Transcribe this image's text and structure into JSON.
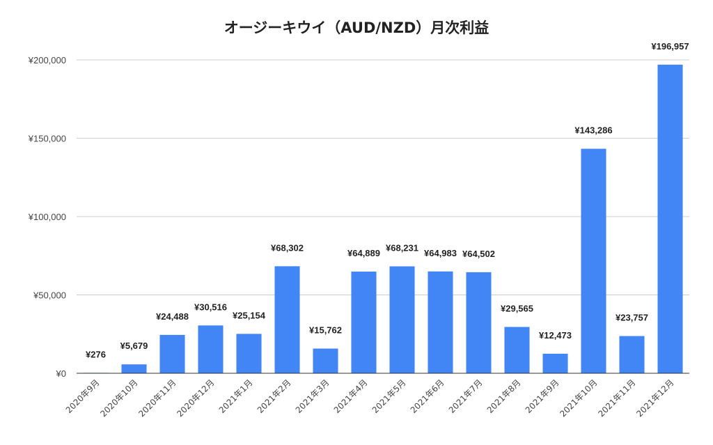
{
  "chart_data": {
    "type": "bar",
    "title": "オージーキウイ（AUD/NZD）月次利益",
    "xlabel": "",
    "ylabel": "",
    "ylim": [
      0,
      200000
    ],
    "yticks": [
      0,
      50000,
      100000,
      150000,
      200000
    ],
    "ytick_labels": [
      "¥0",
      "¥50,000",
      "¥100,000",
      "¥150,000",
      "¥200,000"
    ],
    "categories": [
      "2020年9月",
      "2020年10月",
      "2020年11月",
      "2020年12月",
      "2021年1月",
      "2021年2月",
      "2021年3月",
      "2021年4月",
      "2021年5月",
      "2021年6月",
      "2021年7月",
      "2021年8月",
      "2021年9月",
      "2021年10月",
      "2021年11月",
      "2021年12月"
    ],
    "values": [
      276,
      5679,
      24488,
      30516,
      25154,
      68302,
      15762,
      64889,
      68231,
      64983,
      64502,
      29565,
      12473,
      143286,
      23757,
      196957
    ],
    "data_labels": [
      "¥276",
      "¥5,679",
      "¥24,488",
      "¥30,516",
      "¥25,154",
      "¥68,302",
      "¥15,762",
      "¥64,889",
      "¥68,231",
      "¥64,983",
      "¥64,502",
      "¥29,565",
      "¥12,473",
      "¥143,286",
      "¥23,757",
      "¥196,957"
    ],
    "grid": true,
    "legend": "none",
    "colors": {
      "bar": "#4285f4"
    }
  }
}
